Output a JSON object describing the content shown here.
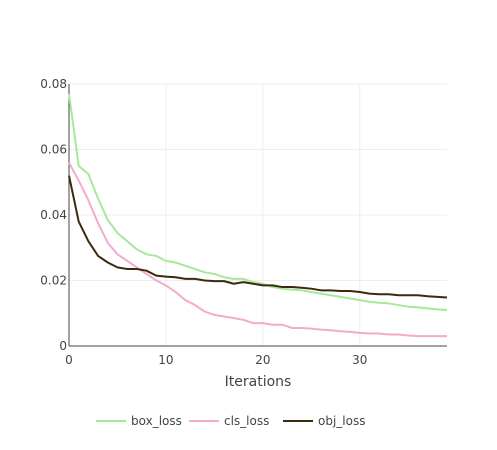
{
  "chart_data": {
    "type": "line",
    "title": "",
    "xlabel": "Iterations",
    "ylabel": "",
    "xlim": [
      0,
      39
    ],
    "ylim": [
      0,
      0.08
    ],
    "x_ticks": [
      0,
      10,
      20,
      30
    ],
    "x_tick_labels": [
      "0",
      "10",
      "20",
      "30"
    ],
    "y_ticks": [
      0,
      0.02,
      0.04,
      0.06,
      0.08
    ],
    "y_tick_labels": [
      "0",
      "0.02",
      "0.04",
      "0.06",
      "0.08"
    ],
    "grid": true,
    "legend_position": "bottom",
    "x": [
      0,
      1,
      2,
      3,
      4,
      5,
      6,
      7,
      8,
      9,
      10,
      11,
      12,
      13,
      14,
      15,
      16,
      17,
      18,
      19,
      20,
      21,
      22,
      23,
      24,
      25,
      26,
      27,
      28,
      29,
      30,
      31,
      32,
      33,
      34,
      35,
      36,
      37,
      38,
      39
    ],
    "series": [
      {
        "name": "box_loss",
        "color": "#a8e89a",
        "values": [
          0.077,
          0.055,
          0.0525,
          0.045,
          0.0385,
          0.0345,
          0.032,
          0.0295,
          0.028,
          0.0275,
          0.026,
          0.0255,
          0.0245,
          0.0235,
          0.0225,
          0.022,
          0.021,
          0.0205,
          0.0205,
          0.0195,
          0.019,
          0.018,
          0.0175,
          0.0172,
          0.017,
          0.0165,
          0.016,
          0.0155,
          0.015,
          0.0145,
          0.014,
          0.0135,
          0.0132,
          0.013,
          0.0125,
          0.012,
          0.0118,
          0.0115,
          0.0112,
          0.011
        ]
      },
      {
        "name": "cls_loss",
        "color": "#f5aacb",
        "values": [
          0.056,
          0.0505,
          0.0445,
          0.0375,
          0.0315,
          0.028,
          0.026,
          0.024,
          0.022,
          0.02,
          0.0185,
          0.0165,
          0.014,
          0.0125,
          0.0105,
          0.0095,
          0.009,
          0.0085,
          0.008,
          0.007,
          0.007,
          0.0065,
          0.0065,
          0.0055,
          0.0055,
          0.0053,
          0.005,
          0.0048,
          0.0045,
          0.0043,
          0.004,
          0.0038,
          0.0038,
          0.0035,
          0.0035,
          0.0032,
          0.003,
          0.003,
          0.003,
          0.003
        ]
      },
      {
        "name": "obj_loss",
        "color": "#3b2a0c",
        "values": [
          0.052,
          0.038,
          0.032,
          0.0275,
          0.0255,
          0.024,
          0.0235,
          0.0235,
          0.023,
          0.0215,
          0.0212,
          0.021,
          0.0205,
          0.0205,
          0.02,
          0.0198,
          0.0198,
          0.019,
          0.0195,
          0.019,
          0.0185,
          0.0185,
          0.018,
          0.018,
          0.0178,
          0.0175,
          0.017,
          0.017,
          0.0168,
          0.0168,
          0.0165,
          0.016,
          0.0158,
          0.0158,
          0.0155,
          0.0155,
          0.0155,
          0.0152,
          0.015,
          0.0148
        ]
      }
    ]
  }
}
